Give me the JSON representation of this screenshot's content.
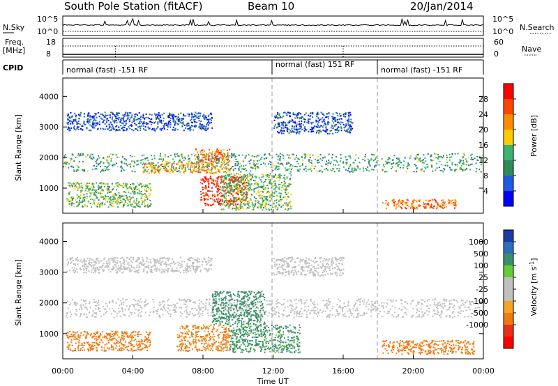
{
  "header": {
    "station": "South Pole Station (fitACF)",
    "beam": "Beam 10",
    "date": "20/Jan/2014"
  },
  "panels": {
    "nsky": {
      "left_label": "N.Sky",
      "right_label": "N.Search",
      "left_ticks": [
        "10^5",
        "10^0"
      ],
      "right_ticks": [
        "10^5",
        "10^0"
      ]
    },
    "freq": {
      "left_label": "Freq.",
      "left_unit": "[MHz]",
      "right_label": "Nave",
      "left_ticks": [
        "18",
        "8"
      ],
      "right_ticks": [
        "60",
        "0"
      ]
    },
    "cpid": {
      "label": "CPID",
      "segments": [
        {
          "text": "normal (fast) -151 RF",
          "start_hour": 0
        },
        {
          "text": "normal (fast) 151 RF",
          "start_hour": 12
        },
        {
          "text": "normal (fast) -151 RF",
          "start_hour": 18
        }
      ]
    }
  },
  "colors": {
    "power_scale": [
      "#0000ff",
      "#1e5ae6",
      "#2e8b57",
      "#3cb371",
      "#ffcc00",
      "#ff8c00",
      "#ff4500",
      "#ff0000"
    ],
    "velocity_scale": [
      "#1a3aa8",
      "#2e6fba",
      "#3a8f6a",
      "#66cc33",
      "#c0c0c0",
      "#c0c0c0",
      "#f7a520",
      "#f07a10",
      "#e83018",
      "#ff0000"
    ],
    "ground_scatter": "#c0c0c0"
  },
  "chart_data": [
    {
      "type": "heatmap",
      "title": "",
      "ylabel": "Slant Range [km]",
      "xlabel": "Time UT",
      "xlim": [
        "00:00",
        "00:00"
      ],
      "ylim": [
        180,
        4600
      ],
      "x_ticks": [
        "00:00",
        "04:00",
        "08:00",
        "12:00",
        "16:00",
        "20:00",
        "00:00"
      ],
      "y_ticks": [
        1000,
        2000,
        3000,
        4000
      ],
      "colorbar": {
        "label": "Power [dB]",
        "ticks": [
          4,
          8,
          12,
          16,
          20,
          24,
          28
        ]
      },
      "scatter_regions": [
        {
          "hours": [
            0,
            24
          ],
          "range_km": [
            1550,
            2150
          ],
          "power_db": 12
        },
        {
          "hours": [
            4.5,
            9.5
          ],
          "range_km": [
            1500,
            1900
          ],
          "power_db": 20
        },
        {
          "hours": [
            7.5,
            9.5
          ],
          "range_km": [
            1900,
            2300
          ],
          "power_db": 24
        },
        {
          "hours": [
            7.8,
            10.5
          ],
          "range_km": [
            450,
            1400
          ],
          "power_db": 28
        },
        {
          "hours": [
            0.2,
            8.5
          ],
          "range_km": [
            2900,
            3500
          ],
          "power_db": 6
        },
        {
          "hours": [
            12,
            16.5
          ],
          "range_km": [
            2800,
            3500
          ],
          "power_db": 6
        },
        {
          "hours": [
            0.2,
            5
          ],
          "range_km": [
            400,
            1200
          ],
          "power_db": 14
        },
        {
          "hours": [
            18.2,
            22.5
          ],
          "range_km": [
            350,
            650
          ],
          "power_db": 24
        },
        {
          "hours": [
            9,
            13
          ],
          "range_km": [
            300,
            1500
          ],
          "power_db": 14
        }
      ]
    },
    {
      "type": "heatmap",
      "title": "",
      "ylabel": "Slant Range [km]",
      "xlabel": "Time UT",
      "xlim": [
        "00:00",
        "00:00"
      ],
      "ylim": [
        180,
        4600
      ],
      "x_ticks": [
        "00:00",
        "04:00",
        "08:00",
        "12:00",
        "16:00",
        "20:00",
        "00:00"
      ],
      "y_ticks": [
        1000,
        2000,
        3000,
        4000
      ],
      "colorbar": {
        "label": "Velocity [m s",
        "label_sup": "-1",
        "label_end": "]",
        "ticks": [
          1000,
          500,
          100,
          25,
          -25,
          -100,
          -500,
          -1000
        ]
      },
      "scatter_regions": [
        {
          "hours": [
            0,
            24
          ],
          "range_km": [
            1550,
            2150
          ],
          "velocity_ms": 0,
          "ground_scatter": true
        },
        {
          "hours": [
            0.2,
            8.5
          ],
          "range_km": [
            3000,
            3500
          ],
          "velocity_ms": 0,
          "ground_scatter": true
        },
        {
          "hours": [
            0.2,
            5
          ],
          "range_km": [
            450,
            1100
          ],
          "velocity_ms": -200
        },
        {
          "hours": [
            6.5,
            9.5
          ],
          "range_km": [
            450,
            1300
          ],
          "velocity_ms": -150
        },
        {
          "hours": [
            8.5,
            11.5
          ],
          "range_km": [
            1300,
            2400
          ],
          "velocity_ms": 300
        },
        {
          "hours": [
            9.5,
            13.5
          ],
          "range_km": [
            400,
            1300
          ],
          "velocity_ms": 150
        },
        {
          "hours": [
            18.2,
            23.5
          ],
          "range_km": [
            350,
            800
          ],
          "velocity_ms": -250
        },
        {
          "hours": [
            12,
            16
          ],
          "range_km": [
            2900,
            3500
          ],
          "velocity_ms": 0,
          "ground_scatter": true
        }
      ]
    }
  ]
}
